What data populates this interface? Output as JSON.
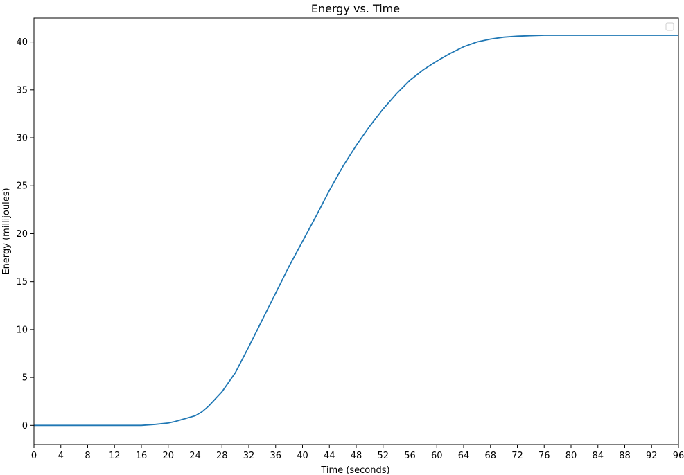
{
  "chart_data": {
    "type": "line",
    "title": "Energy vs. Time",
    "xlabel": "Time (seconds)",
    "ylabel": "Energy (millijoules)",
    "xlim": [
      0,
      96
    ],
    "ylim": [
      -2,
      42.5
    ],
    "x_ticks": [
      0,
      4,
      8,
      12,
      16,
      20,
      24,
      28,
      32,
      36,
      40,
      44,
      48,
      52,
      56,
      60,
      64,
      68,
      72,
      76,
      80,
      84,
      88,
      92,
      96
    ],
    "y_ticks": [
      0,
      5,
      10,
      15,
      20,
      25,
      30,
      35,
      40
    ],
    "grid": false,
    "legend": {
      "placement": "top-right",
      "entries": []
    },
    "series": [
      {
        "color": "#1f77b4",
        "x": [
          0,
          4,
          8,
          12,
          16,
          18,
          20,
          21,
          22,
          24,
          25,
          26,
          28,
          30,
          32,
          34,
          36,
          38,
          40,
          42,
          44,
          46,
          48,
          50,
          52,
          54,
          56,
          58,
          60,
          62,
          64,
          66,
          68,
          70,
          72,
          74,
          76,
          80,
          84,
          88,
          92,
          96
        ],
        "y": [
          0,
          0,
          0,
          0,
          0,
          0.1,
          0.25,
          0.4,
          0.6,
          1.0,
          1.4,
          2.0,
          3.5,
          5.5,
          8.2,
          11.0,
          13.8,
          16.6,
          19.2,
          21.8,
          24.5,
          27.0,
          29.2,
          31.2,
          33.0,
          34.6,
          36.0,
          37.1,
          38.0,
          38.8,
          39.5,
          40.0,
          40.3,
          40.5,
          40.6,
          40.65,
          40.7,
          40.7,
          40.7,
          40.7,
          40.7,
          40.7
        ]
      }
    ]
  }
}
